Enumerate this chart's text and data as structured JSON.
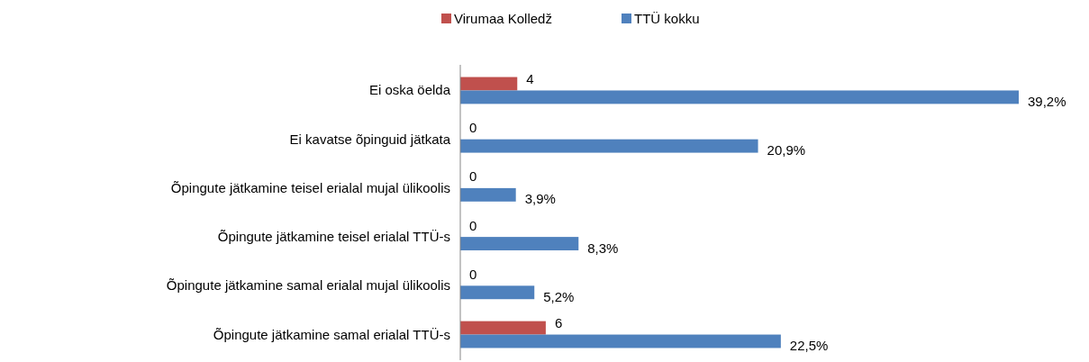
{
  "chart_data": {
    "type": "bar",
    "orientation": "horizontal",
    "legend": "top",
    "categories": [
      "Ei oska öelda",
      "Ei kavatse õpinguid jätkata",
      "Õpingute jätkamine teisel erialal mujal ülikoolis",
      "Õpingute jätkamine teisel erialal TTÜ-s",
      "Õpingute jätkamine samal erialal mujal ülikoolis",
      "Õpingute jätkamine samal erialal TTÜ-s"
    ],
    "series": [
      {
        "name": "Virumaa Kolledž",
        "color": "#c0504d",
        "values": [
          4,
          0,
          0,
          0,
          0,
          6
        ],
        "value_labels": [
          "4",
          "0",
          "0",
          "0",
          "0",
          "6"
        ]
      },
      {
        "name": "TTÜ kokku",
        "color": "#4f81bd",
        "values": [
          39.2,
          20.9,
          3.9,
          8.3,
          5.2,
          22.5
        ],
        "value_labels": [
          "39,2%",
          "20,9%",
          "3,9%",
          "8,3%",
          "5,2%",
          "22,5%"
        ]
      }
    ]
  }
}
